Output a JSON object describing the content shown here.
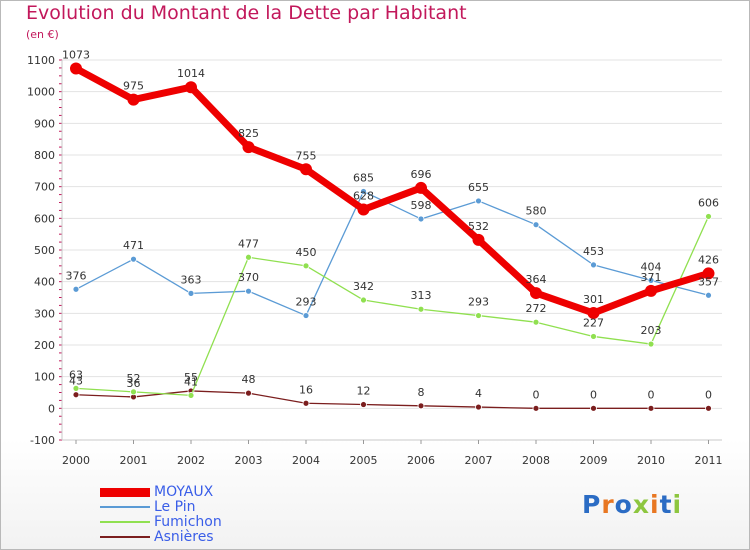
{
  "title": "Evolution du Montant de la Dette par Habitant",
  "subtitle": "(en €)",
  "logo": "Proxiti",
  "chart_data": {
    "type": "line",
    "title": "Evolution du Montant de la Dette par Habitant",
    "ylabel": "(en €)",
    "xlabel": "",
    "x": [
      "2000",
      "2001",
      "2002",
      "2003",
      "2004",
      "2005",
      "2006",
      "2007",
      "2008",
      "2009",
      "2010",
      "2011"
    ],
    "ylim": [
      -100,
      1100
    ],
    "yticks": [
      -100,
      0,
      100,
      200,
      300,
      400,
      500,
      600,
      700,
      800,
      900,
      1000,
      1100
    ],
    "grid": "horizontal",
    "legend_position": "bottom-left",
    "series": [
      {
        "name": "MOYAUX",
        "color": "#ee0000",
        "values": [
          1073,
          975,
          1014,
          825,
          755,
          628,
          696,
          532,
          364,
          301,
          371,
          426
        ]
      },
      {
        "name": "Le Pin",
        "color": "#5b9bd5",
        "values": [
          376,
          471,
          363,
          370,
          293,
          685,
          598,
          655,
          580,
          453,
          404,
          357
        ]
      },
      {
        "name": "Fumichon",
        "color": "#90e050",
        "values": [
          63,
          52,
          41,
          477,
          450,
          342,
          313,
          293,
          272,
          227,
          203,
          606
        ]
      },
      {
        "name": "Asnières",
        "color": "#7b1e1e",
        "values": [
          43,
          36,
          55,
          48,
          16,
          12,
          8,
          4,
          0,
          0,
          0,
          0
        ]
      }
    ]
  }
}
